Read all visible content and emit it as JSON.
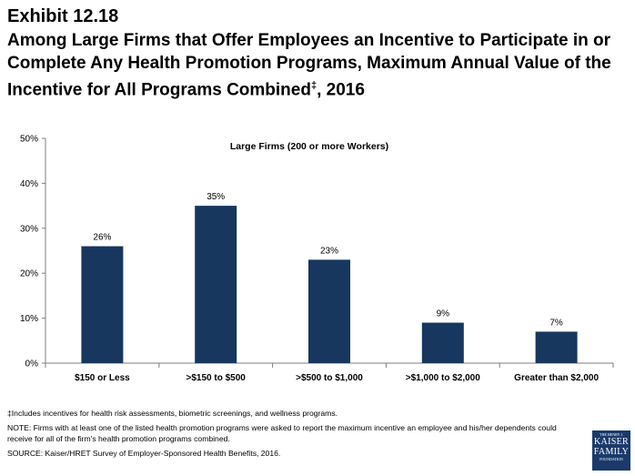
{
  "exhibit": "Exhibit 12.18",
  "title": "Among Large Firms that Offer Employees an Incentive to Participate in or Complete Any Health Promotion Programs, Maximum Annual Value of the Incentive for All Programs Combined",
  "title_mark": "‡",
  "title_suffix": ", 2016",
  "chart_data": {
    "type": "bar",
    "subtitle": "Large Firms (200 or more Workers)",
    "categories": [
      "$150 or Less",
      ">$150 to $500",
      ">$500 to $1,000",
      ">$1,000 to $2,000",
      "Greater than $2,000"
    ],
    "values": [
      26,
      35,
      23,
      9,
      7
    ],
    "data_labels": [
      "26%",
      "35%",
      "23%",
      "9%",
      "7%"
    ],
    "ylim": [
      0,
      50
    ],
    "yticks": [
      0,
      10,
      20,
      30,
      40,
      50
    ],
    "ytick_labels": [
      "0%",
      "10%",
      "20%",
      "30%",
      "40%",
      "50%"
    ],
    "xlabel": "",
    "ylabel": "",
    "grid": false,
    "bar_color": "#17375e"
  },
  "notes": {
    "footnote": "‡Includes incentives for health risk assessments, biometric screenings, and wellness programs.",
    "note": "NOTE: Firms with at least one of the listed health promotion programs were asked to report the maximum incentive an employee and his/her dependents could receive for all of the firm's health promotion programs combined.",
    "source": "SOURCE: Kaiser/HRET Survey of Employer-Sponsored Health Benefits, 2016."
  },
  "logo": {
    "line1": "THE HENRY J.",
    "line2": "KAISER",
    "line3": "FAMILY",
    "line4": "FOUNDATION",
    "color": "#1b3a6b"
  }
}
